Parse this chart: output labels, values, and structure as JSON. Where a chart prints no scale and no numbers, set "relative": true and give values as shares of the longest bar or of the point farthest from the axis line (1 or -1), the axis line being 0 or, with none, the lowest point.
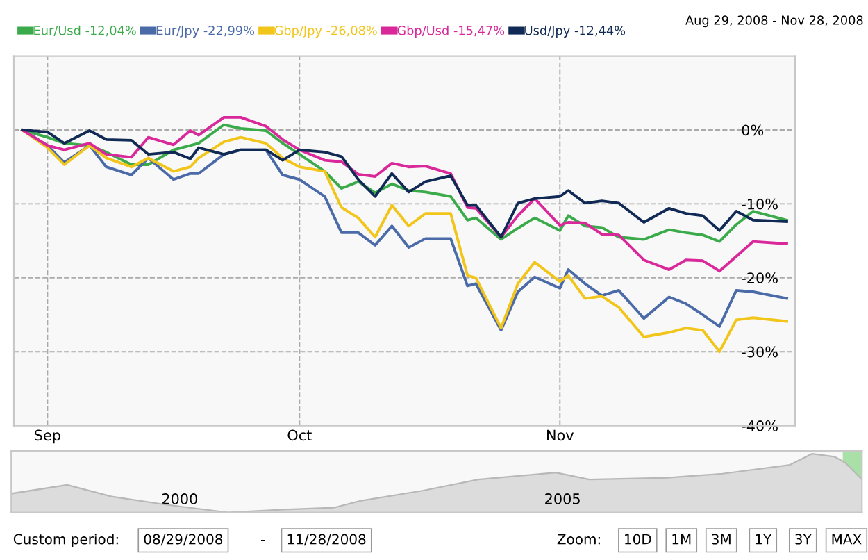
{
  "chart_data": [
    {
      "type": "line",
      "legend": "top",
      "grid": true,
      "line_style": "solid",
      "marker": "none",
      "tick_labels": "xy",
      "annotations": [
        "Aug 29, 2008 - Nov 28, 2008"
      ],
      "x": [
        "2008-08-29",
        "2008-09-01",
        "2008-09-03",
        "2008-09-06",
        "2008-09-08",
        "2008-09-11",
        "2008-09-13",
        "2008-09-16",
        "2008-09-18",
        "2008-09-19",
        "2008-09-22",
        "2008-09-24",
        "2008-09-27",
        "2008-09-29",
        "2008-10-01",
        "2008-10-04",
        "2008-10-06",
        "2008-10-08",
        "2008-10-10",
        "2008-10-12",
        "2008-10-14",
        "2008-10-16",
        "2008-10-19",
        "2008-10-21",
        "2008-10-22",
        "2008-10-25",
        "2008-10-27",
        "2008-10-29",
        "2008-11-01",
        "2008-11-02",
        "2008-11-04",
        "2008-11-06",
        "2008-11-08",
        "2008-11-11",
        "2008-11-14",
        "2008-11-16",
        "2008-11-18",
        "2008-11-20",
        "2008-11-22",
        "2008-11-24",
        "2008-11-28"
      ],
      "xlim": [
        "2008-08-28",
        "2008-11-29"
      ],
      "xticks": [
        {
          "value": "2008-09-01",
          "label": "Sep"
        },
        {
          "value": "2008-10-01",
          "label": "Oct"
        },
        {
          "value": "2008-11-01",
          "label": "Nov"
        }
      ],
      "ylim": [
        -40,
        10
      ],
      "yticks": [
        {
          "value": -40,
          "label": "-40%"
        },
        {
          "value": -30,
          "label": "-30%"
        },
        {
          "value": -20,
          "label": "-20%"
        },
        {
          "value": -10,
          "label": "-10%"
        },
        {
          "value": 0,
          "label": "0%"
        }
      ],
      "series": [
        {
          "name": "Eur/Usd -12,04%",
          "color": "#3aaa4a",
          "values": [
            0,
            -1.0,
            -1.8,
            -2.1,
            -3.0,
            -4.7,
            -4.7,
            -2.7,
            -2.1,
            -1.8,
            0.7,
            0.2,
            -0.1,
            -1.8,
            -3.3,
            -5.6,
            -7.9,
            -7.0,
            -8.5,
            -7.3,
            -8.2,
            -8.4,
            -9.0,
            -12.2,
            -11.9,
            -14.8,
            -13.3,
            -11.9,
            -13.6,
            -11.6,
            -13.0,
            -13.2,
            -14.5,
            -14.8,
            -13.5,
            -13.9,
            -14.2,
            -15.1,
            -12.8,
            -11.0,
            -12.2
          ]
        },
        {
          "name": "Eur/Jpy -22,99%",
          "color": "#4a6aa8",
          "values": [
            0,
            -2.1,
            -4.4,
            -2.1,
            -5.0,
            -6.1,
            -3.8,
            -6.7,
            -5.9,
            -5.9,
            -3.3,
            -2.7,
            -2.7,
            -6.1,
            -6.7,
            -9.0,
            -13.9,
            -13.9,
            -15.6,
            -13.0,
            -15.9,
            -14.7,
            -14.7,
            -21.1,
            -20.8,
            -27.1,
            -21.9,
            -19.9,
            -21.4,
            -18.9,
            -20.8,
            -22.4,
            -21.7,
            -25.5,
            -22.6,
            -23.5,
            -25.0,
            -26.6,
            -21.7,
            -21.9,
            -22.8
          ]
        },
        {
          "name": "Gbp/Jpy -26,08%",
          "color": "#f2c51a",
          "values": [
            0,
            -2.4,
            -4.7,
            -2.1,
            -3.8,
            -5.0,
            -3.8,
            -5.6,
            -5.0,
            -3.8,
            -1.6,
            -1.0,
            -1.8,
            -3.8,
            -5.0,
            -5.6,
            -10.5,
            -11.9,
            -14.5,
            -10.2,
            -13.0,
            -11.3,
            -11.3,
            -19.7,
            -20.0,
            -26.8,
            -20.8,
            -17.9,
            -20.5,
            -19.7,
            -22.8,
            -22.5,
            -24.0,
            -28.0,
            -27.4,
            -26.8,
            -27.1,
            -30.0,
            -25.7,
            -25.4,
            -25.9
          ]
        },
        {
          "name": "Gbp/Usd -15,47%",
          "color": "#d8289a",
          "values": [
            0,
            -2.1,
            -2.7,
            -1.8,
            -3.3,
            -3.7,
            -1.0,
            -2.0,
            -0.1,
            -0.7,
            1.7,
            1.7,
            0.5,
            -1.3,
            -2.7,
            -4.1,
            -4.3,
            -6.0,
            -6.3,
            -4.5,
            -5.0,
            -4.9,
            -5.9,
            -10.5,
            -10.6,
            -14.5,
            -11.6,
            -9.3,
            -12.9,
            -12.5,
            -12.6,
            -14.1,
            -14.2,
            -17.6,
            -18.9,
            -17.6,
            -17.7,
            -19.1,
            -17.1,
            -15.1,
            -15.4
          ]
        },
        {
          "name": "Usd/Jpy -12,44%",
          "color": "#102a55",
          "values": [
            0,
            -0.3,
            -1.8,
            -0.1,
            -1.3,
            -1.4,
            -3.3,
            -3.0,
            -3.9,
            -2.4,
            -3.3,
            -2.7,
            -2.7,
            -4.1,
            -2.7,
            -3.0,
            -3.6,
            -6.7,
            -9.0,
            -5.9,
            -8.4,
            -7.0,
            -6.2,
            -10.2,
            -10.2,
            -14.5,
            -9.9,
            -9.3,
            -9.0,
            -8.2,
            -9.9,
            -9.6,
            -9.9,
            -12.5,
            -10.6,
            -11.3,
            -11.6,
            -13.6,
            -11.0,
            -12.2,
            -12.4
          ]
        }
      ]
    },
    {
      "type": "area",
      "relative": true,
      "grid": false,
      "tick_labels": "x",
      "x": [
        1997.8,
        1998.53,
        1999.11,
        1999.83,
        2000.63,
        2001.36,
        2002.01,
        2002.37,
        2003.17,
        2003.9,
        2004.91,
        2005.35,
        2006.37,
        2007.09,
        2007.97,
        2008.26,
        2008.55,
        2008.69,
        2008.91
      ],
      "xlim": [
        1997.8,
        2008.91
      ],
      "xticks": [
        2000,
        2005
      ],
      "series": [
        {
          "color": "#dcdcdc",
          "values": [
            0.32,
            0.47,
            0.27,
            0.13,
            0,
            0.05,
            0.08,
            0.2,
            0.37,
            0.56,
            0.68,
            0.56,
            0.59,
            0.66,
            0.81,
            1,
            0.95,
            0.85,
            0.56
          ]
        }
      ],
      "bands": [
        {
          "axis": "x",
          "from": 2008.66,
          "to": 2008.91,
          "color": "#a8e0a8"
        }
      ],
      "annotations": [
        "Custom period:",
        "08/29/2008",
        "-",
        "11/28/2008",
        "Zoom:",
        "10D",
        "1M",
        "3M",
        "1Y",
        "3Y",
        "MAX"
      ]
    }
  ]
}
